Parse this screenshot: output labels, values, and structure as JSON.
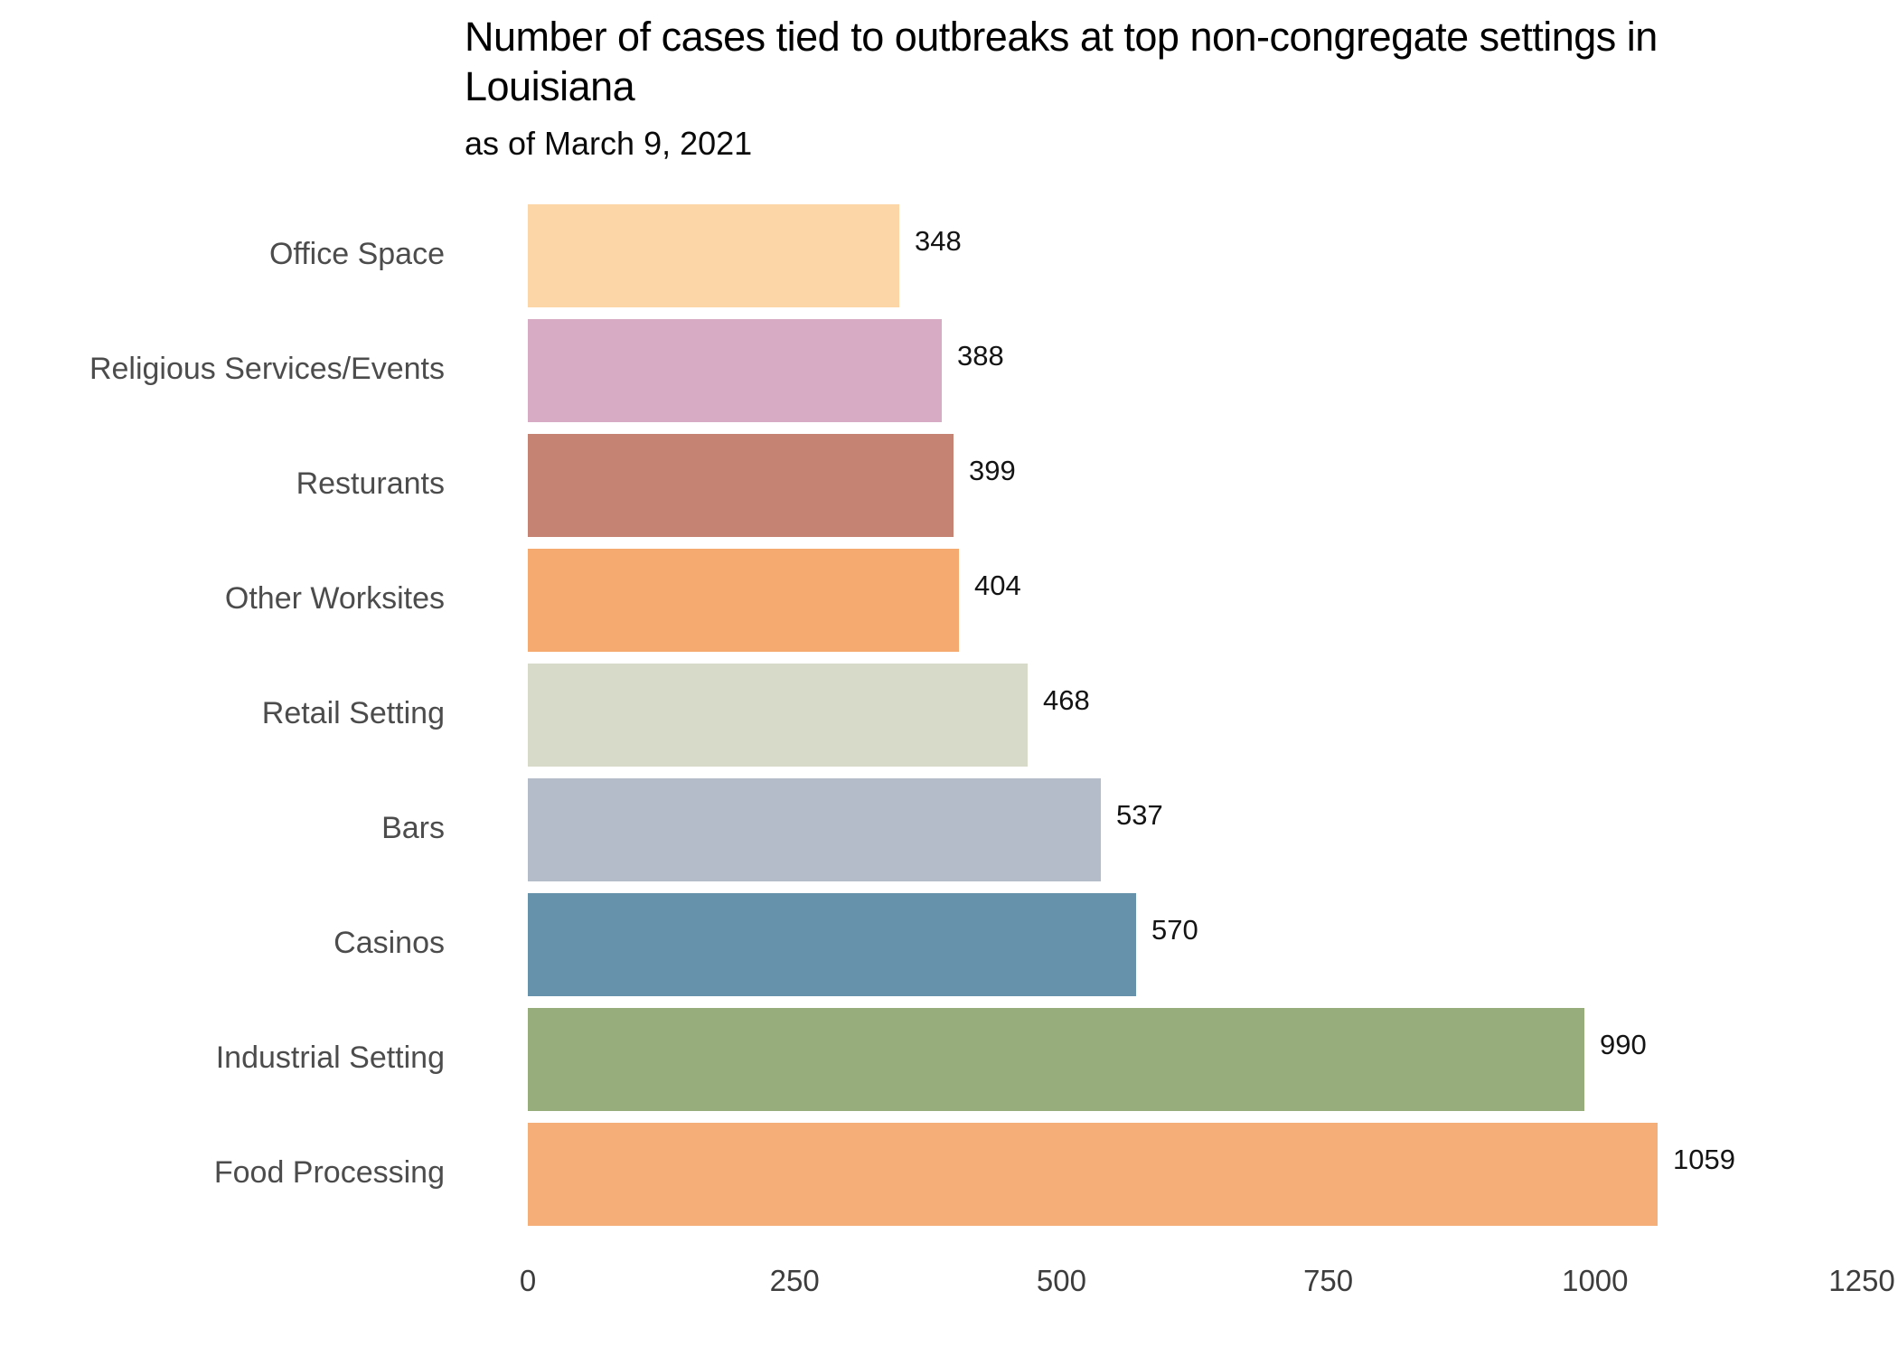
{
  "chart": {
    "title": "Number of cases tied to outbreaks at top non-congregate settings in Louisiana",
    "subtitle": "as of March 9, 2021"
  },
  "chart_data": {
    "type": "bar",
    "orientation": "horizontal",
    "title": "Number of cases tied to outbreaks at top non-congregate settings in Louisiana",
    "subtitle": "as of March 9, 2021",
    "categories": [
      "Office Space",
      "Religious Services/Events",
      "Resturants",
      "Other Worksites",
      "Retail Setting",
      "Bars",
      "Casinos",
      "Industrial Setting",
      "Food Processing"
    ],
    "values": [
      348,
      388,
      399,
      404,
      468,
      537,
      570,
      990,
      1059
    ],
    "bar_colors": [
      "#FCD6A6",
      "#D7ABC3",
      "#C48373",
      "#F5AA6F",
      "#D7DAC9",
      "#B5BCC9",
      "#6792AC",
      "#97AD7B",
      "#F6AE79"
    ],
    "value_labels": [
      "348",
      "388",
      "399",
      "404",
      "468",
      "537",
      "570",
      "990",
      "1059"
    ],
    "xlabel": "",
    "ylabel": "",
    "xlim": [
      0,
      1250
    ],
    "xticks": [
      "0",
      "250",
      "500",
      "750",
      "1000",
      "1250"
    ],
    "xtick_values": [
      0,
      250,
      500,
      750,
      1000,
      1250
    ],
    "grid": false,
    "legend": false,
    "label_color": "#4c4c4c",
    "value_label_color": "#141414",
    "background": "#ffffff"
  }
}
